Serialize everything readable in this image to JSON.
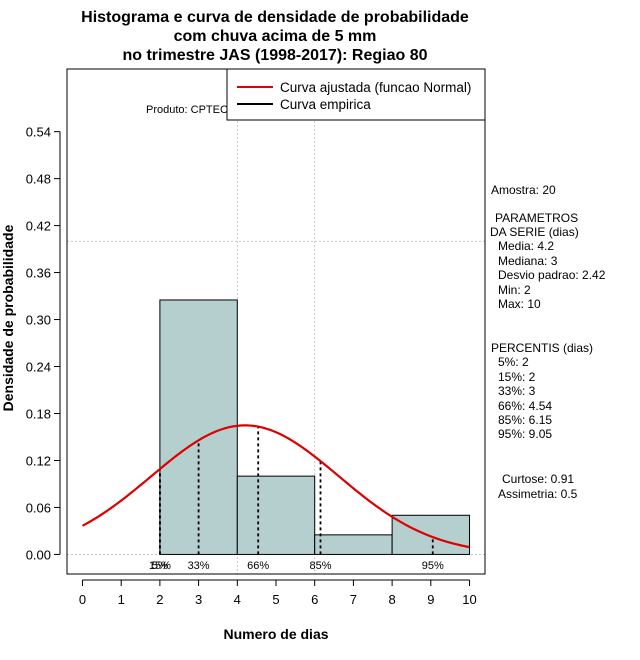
{
  "chart_data": {
    "type": "histogram",
    "title_lines": [
      "Histograma e curva de densidade de probabilidade",
      "com chuva acima de 5 mm",
      "no trimestre JAS (1998-2017): Regiao 80"
    ],
    "xlabel": "Numero de dias",
    "ylabel": "Densidade de probabilidade",
    "xlim": [
      -0.4,
      10.4
    ],
    "ylim": [
      -0.025,
      0.62
    ],
    "x_ticks": [
      0,
      1,
      2,
      3,
      4,
      5,
      6,
      7,
      8,
      9,
      10
    ],
    "x_tick_labels": [
      "0",
      "1",
      "2",
      "3",
      "4",
      "5",
      "6",
      "7",
      "8",
      "9",
      "10"
    ],
    "y_ticks": [
      0.0,
      0.06,
      0.12,
      0.18,
      0.24,
      0.3,
      0.36,
      0.42,
      0.48,
      0.54
    ],
    "y_tick_labels": [
      "0.00",
      "0.06",
      "0.12",
      "0.18",
      "0.24",
      "0.30",
      "0.36",
      "0.42",
      "0.48",
      "0.54"
    ],
    "grid_x": [
      4,
      6
    ],
    "grid_y": [
      0.0,
      0.4
    ],
    "bins": [
      {
        "x0": 2,
        "x1": 4,
        "density": 0.325
      },
      {
        "x0": 4,
        "x1": 6,
        "density": 0.1
      },
      {
        "x0": 6,
        "x1": 8,
        "density": 0.025
      },
      {
        "x0": 8,
        "x1": 10,
        "density": 0.05
      }
    ],
    "bar_color": "#b5cfcf",
    "normal_curve": {
      "mean": 4.2,
      "sd": 2.42,
      "color": "#dd0000"
    },
    "percentile_lines": [
      {
        "x": 2,
        "label": "5%"
      },
      {
        "x": 2,
        "label": "15%"
      },
      {
        "x": 3,
        "label": "33%"
      },
      {
        "x": 4.54,
        "label": "66%"
      },
      {
        "x": 6.15,
        "label": "85%"
      },
      {
        "x": 9.05,
        "label": "95%"
      }
    ],
    "legend": [
      {
        "label": "Curva ajustada (funcao Normal)",
        "color": "#dd0000"
      },
      {
        "label": "Curva empirica",
        "color": "#000000"
      }
    ],
    "legend_position": "top-right",
    "product_label": "Produto: CPTEC/INPE"
  },
  "side_panel": {
    "sample": "Amostra: 20",
    "params_header_1": "PARAMETROS",
    "params_header_2": "DA SERIE (dias)",
    "params": [
      "Media: 4.2",
      "Mediana: 3",
      "Desvio padrao: 2.42",
      "Min: 2",
      "Max: 10"
    ],
    "percentiles_header": "PERCENTIS (dias)",
    "percentiles": [
      "5%: 2",
      "15%: 2",
      "33%: 3",
      "66%: 4.54",
      "85%: 6.15",
      "95%: 9.05"
    ],
    "kurtosis": "Curtose: 0.91",
    "skewness": "Assimetria: 0.5"
  }
}
